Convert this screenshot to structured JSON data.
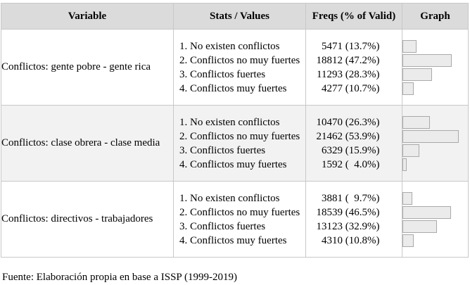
{
  "headers": [
    "Variable",
    "Stats / Values",
    "Freqs (% of Valid)",
    "Graph"
  ],
  "rows": [
    {
      "variable": "Conflictos: gente pobre - gente rica",
      "stats": [
        "1. No existen conflictos",
        "2. Conflictos no muy fuertes",
        "3. Conflictos fuertes",
        "4. Conflictos muy fuertes"
      ],
      "counts": [
        "5471",
        "18812",
        "11293",
        "4277"
      ],
      "pcts": [
        "(13.7%)",
        "(47.2%)",
        "(28.3%)",
        "(10.7%)"
      ],
      "percent_values": [
        13.7,
        47.2,
        28.3,
        10.7
      ]
    },
    {
      "variable": "Conflictos: clase obrera - clase media",
      "stats": [
        "1. No existen conflictos",
        "2. Conflictos no muy fuertes",
        "3. Conflictos fuertes",
        "4. Conflictos muy fuertes"
      ],
      "counts": [
        "10470",
        "21462",
        "6329",
        "1592"
      ],
      "pcts": [
        "(26.3%)",
        "(53.9%)",
        "(15.9%)",
        "(  4.0%)"
      ],
      "percent_values": [
        26.3,
        53.9,
        15.9,
        4.0
      ]
    },
    {
      "variable": "Conflictos: directivos - trabajadores",
      "stats": [
        "1. No existen conflictos",
        "2. Conflictos no muy fuertes",
        "3. Conflictos fuertes",
        "4. Conflictos muy fuertes"
      ],
      "counts": [
        "3881",
        "18539",
        "13123",
        "4310"
      ],
      "pcts": [
        "(  9.7%)",
        "(46.5%)",
        "(32.9%)",
        "(10.8%)"
      ],
      "percent_values": [
        9.7,
        46.5,
        32.9,
        10.8
      ]
    }
  ],
  "footnote": "Fuente: Elaboración propia en base a ISSP (1999-2019)",
  "colors": {
    "header_bg": "#dbdbdb",
    "shade_bg": "#f2f2f2",
    "bar_fill": "#ebebeb",
    "bar_border": "#aaaaaa",
    "grid": "#c8c8c8"
  }
}
